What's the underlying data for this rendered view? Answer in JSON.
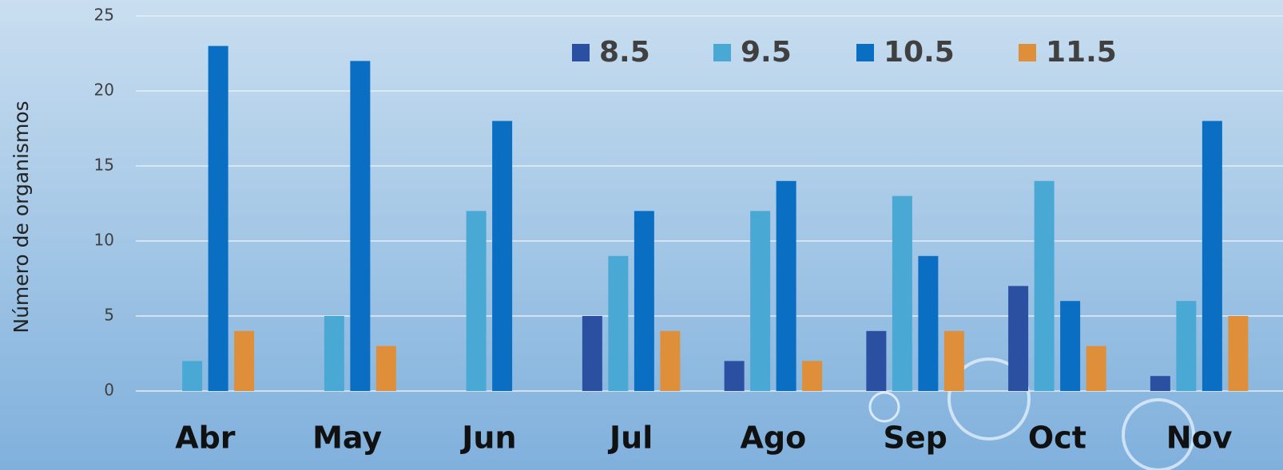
{
  "chart_data": {
    "type": "bar",
    "y_label": "Número de organismos",
    "categories": [
      "Abr",
      "May",
      "Jun",
      "Jul",
      "Ago",
      "Sep",
      "Oct",
      "Nov"
    ],
    "series": [
      {
        "name": "8.5",
        "color": "#2b50a2",
        "values": [
          0,
          0,
          0,
          5,
          2,
          4,
          7,
          1
        ]
      },
      {
        "name": "9.5",
        "color": "#4aa9d4",
        "values": [
          2,
          5,
          12,
          9,
          12,
          13,
          14,
          6
        ]
      },
      {
        "name": "10.5",
        "color": "#0a6fc2",
        "values": [
          23,
          22,
          18,
          12,
          14,
          9,
          6,
          18
        ]
      },
      {
        "name": "11.5",
        "color": "#df8e3a",
        "values": [
          4,
          3,
          0,
          4,
          2,
          4,
          3,
          5
        ]
      }
    ],
    "ylim": [
      0,
      25
    ],
    "yticks": [
      0,
      5,
      10,
      15,
      20,
      25
    ],
    "grid": true
  }
}
